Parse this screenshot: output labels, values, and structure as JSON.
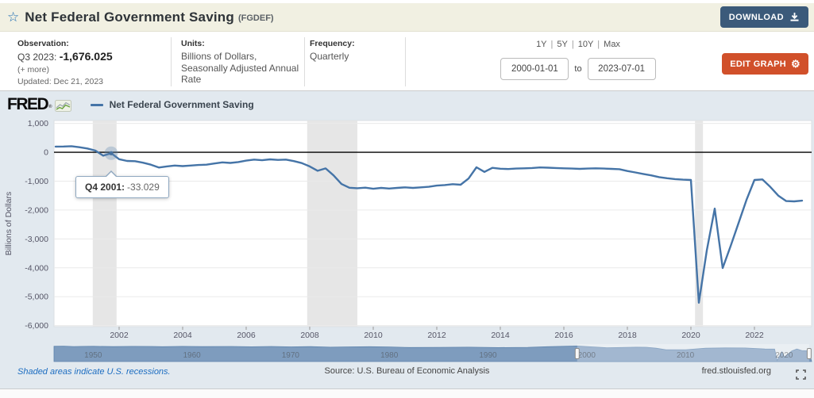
{
  "header": {
    "title": "Net Federal Government Saving",
    "series_id": "(FGDEF)",
    "download_label": "DOWNLOAD"
  },
  "meta": {
    "observation_label": "Observation:",
    "observation_prefix": "Q3 2023:",
    "observation_value": "-1,676.025",
    "more_label": "(+ more)",
    "updated": "Updated: Dec 21, 2023",
    "units_label": "Units:",
    "units_value": "Billions of Dollars, Seasonally Adjusted Annual Rate",
    "frequency_label": "Frequency:",
    "frequency_value": "Quarterly",
    "ranges": [
      "1Y",
      "5Y",
      "10Y",
      "Max"
    ],
    "date_from": "2000-01-01",
    "to_label": "to",
    "date_to": "2023-07-01",
    "edit_graph_label": "EDIT GRAPH"
  },
  "graph": {
    "brand": "FRED",
    "brand_mark": "®",
    "legend_label": "Net Federal Government Saving",
    "tooltip": {
      "label": "Q4 2001:",
      "value": "-33.029"
    }
  },
  "chart_data": {
    "type": "line",
    "title": "Net Federal Government Saving",
    "xlabel": "",
    "ylabel": "Billions of Dollars",
    "ylim": [
      -6000,
      1000
    ],
    "yticks": [
      1000,
      0,
      -1000,
      -2000,
      -3000,
      -4000,
      -5000,
      -6000
    ],
    "xticks": [
      2002,
      2004,
      2006,
      2008,
      2010,
      2012,
      2014,
      2016,
      2018,
      2020,
      2022
    ],
    "xlim": [
      2000.0,
      2023.8
    ],
    "grid": true,
    "legend_position": "top-left",
    "x_start": 2000.0,
    "x_step": 0.25,
    "series": [
      {
        "name": "Net Federal Government Saving",
        "values": [
          195,
          200,
          210,
          175,
          130,
          60,
          -120,
          -33.029,
          -240,
          -300,
          -310,
          -360,
          -430,
          -530,
          -490,
          -460,
          -480,
          -460,
          -440,
          -430,
          -390,
          -350,
          -370,
          -340,
          -290,
          -255,
          -275,
          -245,
          -265,
          -255,
          -305,
          -375,
          -490,
          -640,
          -560,
          -800,
          -1100,
          -1230,
          -1245,
          -1225,
          -1265,
          -1235,
          -1255,
          -1235,
          -1215,
          -1235,
          -1215,
          -1195,
          -1155,
          -1135,
          -1105,
          -1125,
          -910,
          -520,
          -680,
          -540,
          -570,
          -580,
          -565,
          -555,
          -545,
          -525,
          -535,
          -545,
          -555,
          -565,
          -575,
          -565,
          -555,
          -565,
          -575,
          -585,
          -650,
          -700,
          -750,
          -800,
          -860,
          -900,
          -930,
          -950,
          -960,
          -5210,
          -3400,
          -1950,
          -4010,
          -3250,
          -2450,
          -1650,
          -960,
          -940,
          -1200,
          -1500,
          -1690,
          -1700,
          -1676.025
        ]
      }
    ],
    "recessions": [
      [
        2001.17,
        2001.92
      ],
      [
        2007.92,
        2009.5
      ],
      [
        2020.13,
        2020.38
      ]
    ],
    "highlight": {
      "x": 2001.75,
      "y": -33.029
    }
  },
  "minimap": {
    "x_start": 1947,
    "x_end": 2023.75,
    "selected_range": [
      2000.0,
      2023.5
    ],
    "decade_labels": [
      1950,
      1960,
      1970,
      1980,
      1990,
      2000,
      2010,
      2020
    ],
    "points": [
      [
        1947,
        60
      ],
      [
        1948,
        120
      ],
      [
        1949,
        -30
      ],
      [
        1950,
        40
      ],
      [
        1951,
        60
      ],
      [
        1953,
        -60
      ],
      [
        1955,
        20
      ],
      [
        1957,
        10
      ],
      [
        1958,
        -90
      ],
      [
        1960,
        30
      ],
      [
        1962,
        -60
      ],
      [
        1965,
        -10
      ],
      [
        1967,
        -110
      ],
      [
        1969,
        10
      ],
      [
        1971,
        -150
      ],
      [
        1973,
        -60
      ],
      [
        1975,
        -260
      ],
      [
        1977,
        -160
      ],
      [
        1979,
        -90
      ],
      [
        1981,
        -180
      ],
      [
        1983,
        -380
      ],
      [
        1986,
        -330
      ],
      [
        1989,
        -260
      ],
      [
        1992,
        -420
      ],
      [
        1995,
        -310
      ],
      [
        1997,
        -100
      ],
      [
        2000,
        180
      ],
      [
        2001,
        -33
      ],
      [
        2003,
        -480
      ],
      [
        2006,
        -260
      ],
      [
        2007,
        -300
      ],
      [
        2008,
        -640
      ],
      [
        2009,
        -1240
      ],
      [
        2011,
        -1220
      ],
      [
        2013,
        -650
      ],
      [
        2015,
        -535
      ],
      [
        2017,
        -570
      ],
      [
        2019,
        -930
      ],
      [
        2020.0,
        -960
      ],
      [
        2020.25,
        -5210
      ],
      [
        2020.75,
        -1950
      ],
      [
        2021.0,
        -4010
      ],
      [
        2021.75,
        -1650
      ],
      [
        2022.25,
        -940
      ],
      [
        2022.75,
        -1500
      ],
      [
        2023.5,
        -1676
      ]
    ]
  },
  "footer": {
    "recession_note": "Shaded areas indicate U.S. recessions.",
    "source": "Source: U.S. Bureau of Economic Analysis",
    "site": "fred.stlouisfed.org"
  },
  "colors": {
    "series": "#4574a7",
    "recession": "#e6e6e6",
    "download_bg": "#3b5a7a",
    "edit_bg": "#d1502a",
    "graph_bg": "#e2e9ef",
    "minimap_fill": "#7e9cbe",
    "link": "#1c6dc1",
    "header_bg": "#f1f0e2"
  }
}
